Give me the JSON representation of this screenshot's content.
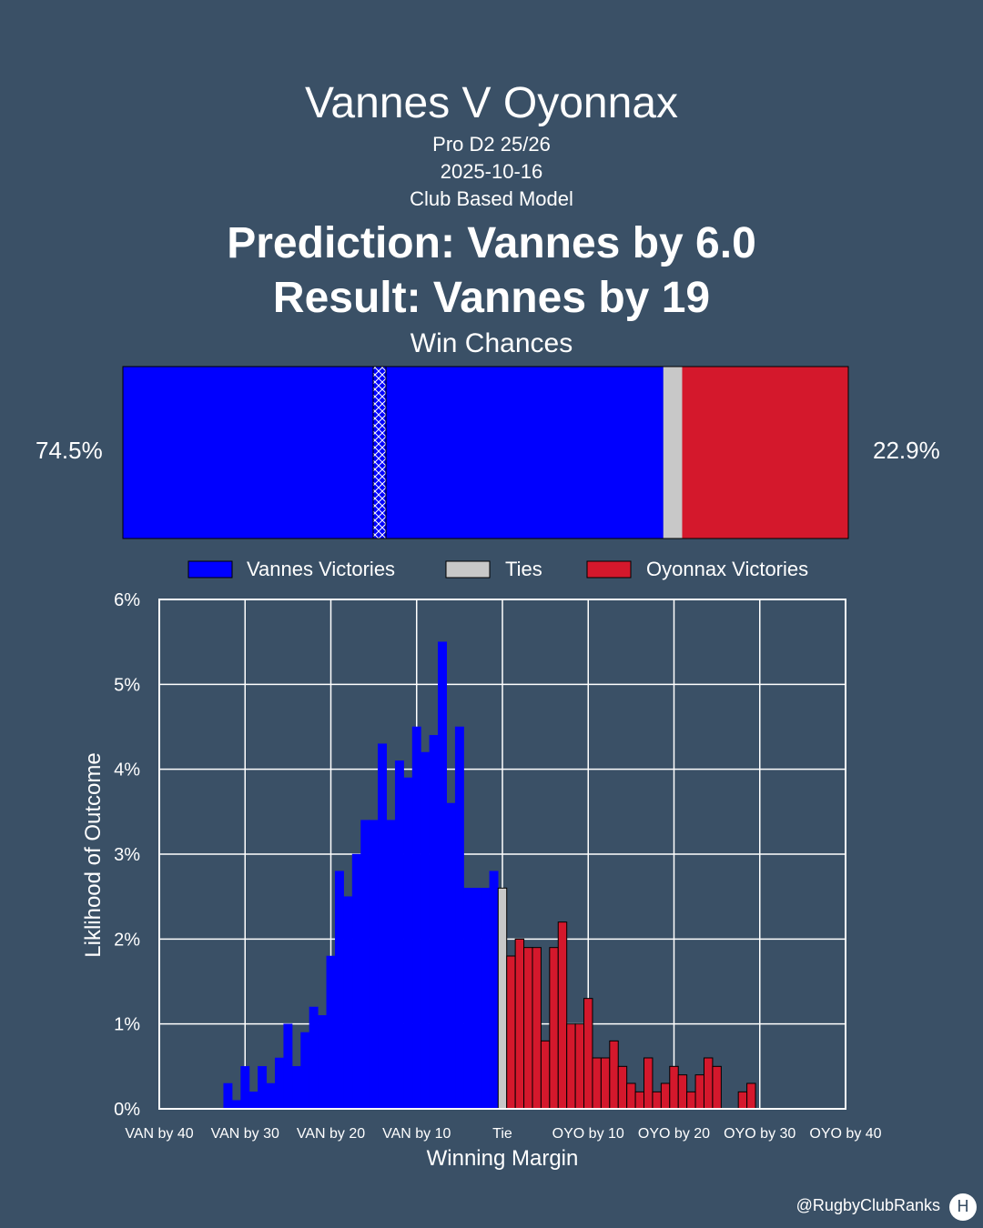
{
  "header": {
    "title": "Vannes V Oyonnax",
    "competition": "Pro D2 25/26",
    "date": "2025-10-16",
    "model": "Club Based Model",
    "prediction": "Prediction: Vannes by 6.0",
    "result": "Result: Vannes by 19"
  },
  "win_chances": {
    "title": "Win Chances",
    "home_pct_label": "74.5%",
    "away_pct_label": "22.9%",
    "home": 74.5,
    "tie": 2.6,
    "away": 22.9,
    "marker_margin": 19
  },
  "legend": {
    "home": "Vannes Victories",
    "tie": "Ties",
    "away": "Oyonnax Victories"
  },
  "colors": {
    "background": "#3a5066",
    "home": "#0000ff",
    "tie": "#c8c8c8",
    "away": "#d4182c"
  },
  "footer": {
    "credit": "@RugbyClubRanks",
    "logo_icon": "rugby-posts-icon"
  },
  "chart_data": {
    "type": "bar",
    "title": "",
    "xlabel": "Winning Margin",
    "ylabel": "Liklihood of Outcome",
    "xlim": [
      -40,
      40
    ],
    "ylim": [
      0,
      6
    ],
    "grid": true,
    "legend_position": "top",
    "x_ticks": [
      -40,
      -30,
      -20,
      -10,
      0,
      10,
      20,
      30,
      40
    ],
    "x_tick_labels": [
      "VAN by 40",
      "VAN by 30",
      "VAN by 20",
      "VAN by 10",
      "Tie",
      "OYO by 10",
      "OYO by 20",
      "OYO by 30",
      "OYO by 40"
    ],
    "y_ticks": [
      0,
      1,
      2,
      3,
      4,
      5,
      6
    ],
    "y_tick_labels": [
      "0%",
      "1%",
      "2%",
      "3%",
      "4%",
      "5%",
      "6%"
    ],
    "series": [
      {
        "name": "Vannes Victories",
        "x": [
          -32,
          -31,
          -30,
          -29,
          -28,
          -27,
          -26,
          -25,
          -24,
          -23,
          -22,
          -21,
          -20,
          -19,
          -18,
          -17,
          -16,
          -15,
          -14,
          -13,
          -12,
          -11,
          -10,
          -9,
          -8,
          -7,
          -6,
          -5,
          -4,
          -3,
          -2,
          -1
        ],
        "values": [
          0.3,
          0.1,
          0.5,
          0.2,
          0.5,
          0.3,
          0.6,
          1.0,
          0.5,
          0.9,
          1.2,
          1.1,
          1.8,
          2.8,
          2.5,
          3.0,
          3.4,
          3.4,
          4.3,
          3.4,
          4.1,
          3.9,
          4.5,
          4.2,
          4.4,
          5.5,
          3.6,
          4.5,
          2.6,
          2.6,
          2.6,
          2.8
        ]
      },
      {
        "name": "Ties",
        "x": [
          0
        ],
        "values": [
          2.6
        ]
      },
      {
        "name": "Oyonnax Victories",
        "x": [
          1,
          2,
          3,
          4,
          5,
          6,
          7,
          8,
          9,
          10,
          11,
          12,
          13,
          14,
          15,
          16,
          17,
          18,
          19,
          20,
          21,
          22,
          23,
          24,
          25,
          26,
          27,
          28,
          29
        ],
        "values": [
          1.8,
          2.0,
          1.9,
          1.9,
          0.8,
          1.9,
          2.2,
          1.0,
          1.0,
          1.3,
          0.6,
          0.6,
          0.8,
          0.5,
          0.3,
          0.2,
          0.6,
          0.2,
          0.3,
          0.5,
          0.4,
          0.2,
          0.4,
          0.6,
          0.5,
          0.0,
          0.0,
          0.2,
          0.3
        ]
      }
    ]
  }
}
